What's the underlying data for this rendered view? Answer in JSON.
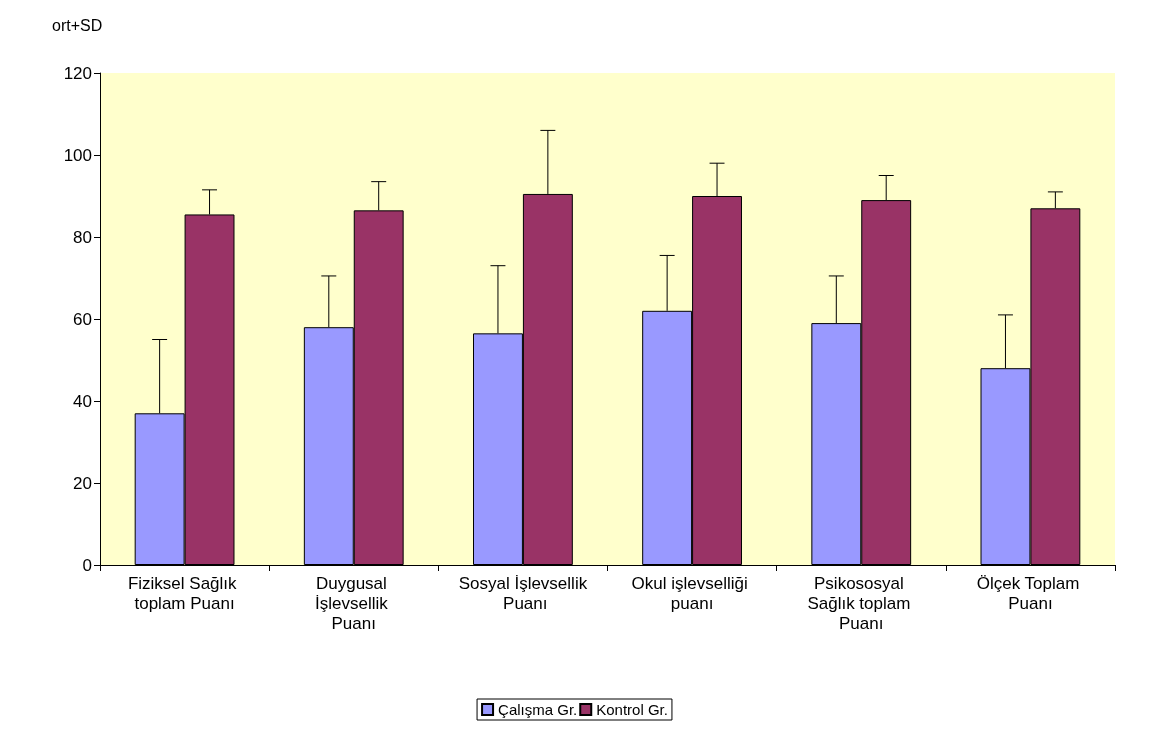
{
  "chart_data": {
    "type": "bar",
    "ylabel": "ort+SD",
    "categories": [
      "Fiziksel Sağlık toplam Puanı",
      "Duygusal İşlevsellik Puanı",
      "Sosyal İşlevsellik Puanı",
      "Okul işlevselliği puanı",
      "Psikososyal Sağlık toplam Puanı",
      "Ölçek Toplam Puanı"
    ],
    "series": [
      {
        "name": "Çalışma Gr.",
        "color": "#9999ff",
        "values": [
          37,
          58,
          56.5,
          62,
          59,
          48
        ],
        "errors": [
          [
            37,
            55
          ],
          [
            58,
            70.5
          ],
          [
            56.5,
            73
          ],
          [
            62,
            75.5
          ],
          [
            59,
            70.5
          ],
          [
            48,
            61
          ]
        ]
      },
      {
        "name": "Kontrol Gr.",
        "color": "#993366",
        "values": [
          85.5,
          86.5,
          90.5,
          90,
          89,
          87
        ],
        "errors": [
          [
            85.5,
            91.5
          ],
          [
            86.5,
            93.5
          ],
          [
            90.5,
            106
          ],
          [
            90,
            98
          ],
          [
            89,
            95
          ],
          [
            87,
            91
          ]
        ]
      }
    ],
    "ylim": [
      0,
      120
    ],
    "yticks": [
      0,
      20,
      40,
      60,
      80,
      100,
      120
    ],
    "grid": false,
    "legend": "bottom"
  }
}
